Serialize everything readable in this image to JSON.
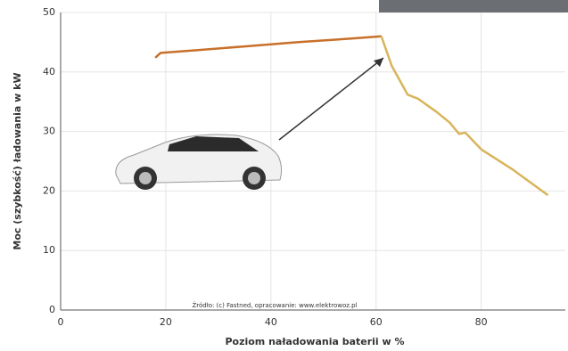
{
  "chart_data": {
    "type": "line",
    "xlabel": "Poziom naładowania baterii w %",
    "ylabel": "Moc (szybkość) ładowania w kW",
    "annotation": "Źródło: (c) Fastned, opracowanie: www.elektrowoz.pl",
    "xlim": [
      0,
      96
    ],
    "ylim": [
      0,
      50
    ],
    "xticks": [
      0,
      20,
      40,
      60,
      80
    ],
    "yticks": [
      0,
      10,
      20,
      30,
      40,
      50
    ],
    "grid": true,
    "series": [
      {
        "color": "#c8702a",
        "x": [
          18,
          19,
          25,
          35,
          45,
          55,
          61
        ],
        "values": [
          42.4,
          43.2,
          43.6,
          44.3,
          45,
          45.6,
          46
        ]
      },
      {
        "color": "#d8b45a",
        "x": [
          61,
          63,
          66,
          68,
          71.5,
          74,
          75.8,
          77,
          80,
          86,
          92.7
        ],
        "values": [
          46,
          41,
          36.2,
          35.5,
          33.3,
          31.5,
          29.6,
          29.8,
          27,
          23.6,
          19.3
        ]
      }
    ]
  }
}
